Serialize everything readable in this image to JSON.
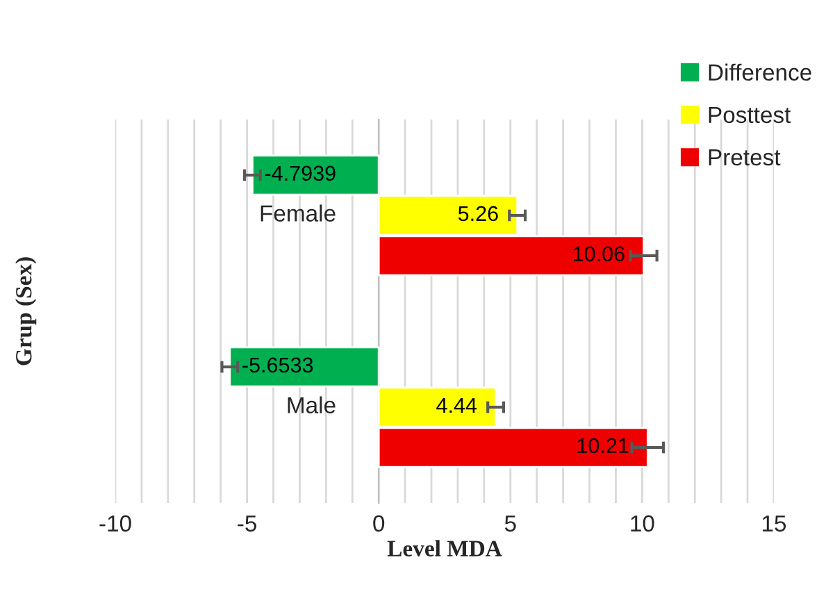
{
  "chart_data": {
    "type": "bar",
    "orientation": "horizontal",
    "xlabel": "Level MDA",
    "ylabel": "Grup (Sex)",
    "categories": [
      "Female",
      "Male"
    ],
    "series": [
      {
        "name": "Difference",
        "color": "#00b050",
        "values": [
          -4.7939,
          -5.6533
        ],
        "errors": [
          0.3,
          0.3
        ]
      },
      {
        "name": "Posttest",
        "color": "#ffff00",
        "values": [
          5.26,
          4.44
        ],
        "errors": [
          0.3,
          0.3
        ]
      },
      {
        "name": "Pretest",
        "color": "#ee0000",
        "values": [
          10.06,
          10.21
        ],
        "errors": [
          0.5,
          0.6
        ]
      }
    ],
    "xlim": [
      -10,
      15
    ],
    "xticks": [
      -10,
      -5,
      0,
      5,
      10,
      15
    ],
    "grid": "x",
    "legend": "top right",
    "data_labels": true
  }
}
